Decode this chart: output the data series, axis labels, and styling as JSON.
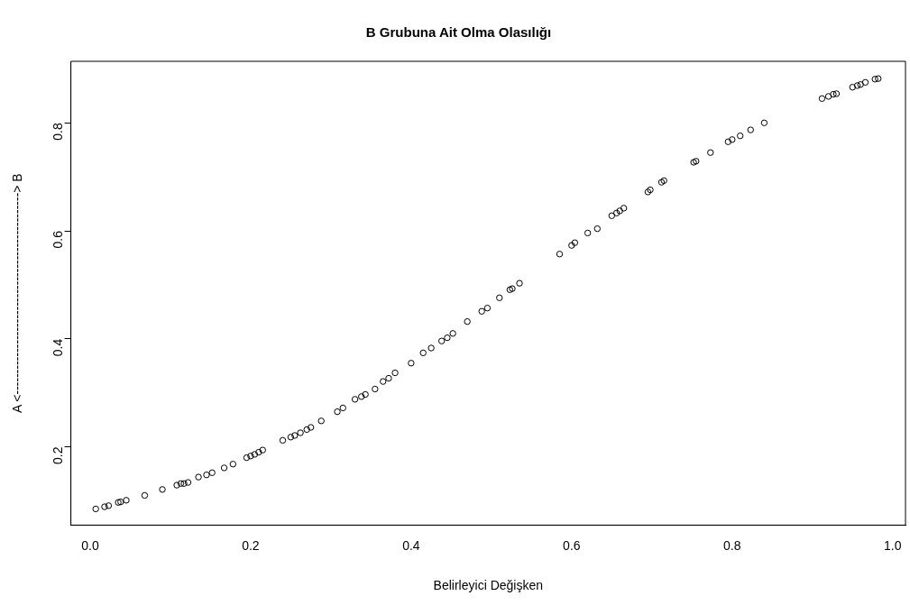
{
  "chart_data": {
    "type": "scatter",
    "title": "B Grubuna Ait Olma Olasılığı",
    "xlabel": "Belirleyici Değişken",
    "ylabel": "A <------------------------------------------------> B",
    "xlim": [
      -0.024,
      1.016
    ],
    "ylim": [
      0.055,
      0.914
    ],
    "xticks": [
      {
        "value": 0,
        "label": "0.0"
      },
      0.2,
      0.4,
      0.6,
      0.8,
      {
        "value": 1,
        "label": "1.0"
      }
    ],
    "yticks": [
      0.2,
      0.4,
      0.6,
      0.8
    ],
    "grid": false,
    "legend": false,
    "marker": "circle",
    "series": [
      {
        "color": "#000000",
        "x": [
          0.007,
          0.018,
          0.023,
          0.035,
          0.038,
          0.045,
          0.068,
          0.09,
          0.108,
          0.113,
          0.117,
          0.122,
          0.135,
          0.145,
          0.152,
          0.167,
          0.178,
          0.195,
          0.2,
          0.205,
          0.21,
          0.215,
          0.24,
          0.25,
          0.255,
          0.262,
          0.27,
          0.275,
          0.288,
          0.308,
          0.315,
          0.33,
          0.338,
          0.343,
          0.355,
          0.365,
          0.372,
          0.38,
          0.4,
          0.415,
          0.425,
          0.438,
          0.445,
          0.452,
          0.47,
          0.488,
          0.495,
          0.51,
          0.523,
          0.526,
          0.535,
          0.585,
          0.6,
          0.604,
          0.62,
          0.632,
          0.65,
          0.656,
          0.66,
          0.665,
          0.695,
          0.698,
          0.712,
          0.715,
          0.752,
          0.755,
          0.773,
          0.795,
          0.8,
          0.81,
          0.823,
          0.84,
          0.912,
          0.92,
          0.926,
          0.93,
          0.95,
          0.956,
          0.96,
          0.966,
          0.978,
          0.982
        ],
        "values": [
          0.085,
          0.089,
          0.091,
          0.097,
          0.098,
          0.101,
          0.11,
          0.121,
          0.129,
          0.132,
          0.132,
          0.134,
          0.144,
          0.148,
          0.152,
          0.161,
          0.168,
          0.18,
          0.183,
          0.186,
          0.19,
          0.194,
          0.212,
          0.218,
          0.221,
          0.226,
          0.232,
          0.236,
          0.248,
          0.265,
          0.272,
          0.288,
          0.293,
          0.297,
          0.307,
          0.321,
          0.327,
          0.337,
          0.355,
          0.374,
          0.383,
          0.396,
          0.402,
          0.41,
          0.432,
          0.451,
          0.457,
          0.476,
          0.491,
          0.493,
          0.503,
          0.557,
          0.573,
          0.578,
          0.596,
          0.604,
          0.628,
          0.633,
          0.637,
          0.642,
          0.672,
          0.676,
          0.69,
          0.693,
          0.727,
          0.729,
          0.745,
          0.765,
          0.769,
          0.776,
          0.787,
          0.8,
          0.845,
          0.849,
          0.853,
          0.854,
          0.866,
          0.869,
          0.871,
          0.875,
          0.881,
          0.882
        ]
      }
    ]
  }
}
